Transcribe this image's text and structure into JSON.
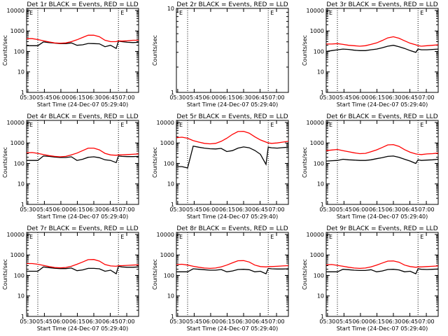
{
  "figure": {
    "xlabel": "Start Time (24-Dec-07 05:29:40)",
    "ylabel": "Counts/sec",
    "x_ticks": [
      "05:30",
      "05:45",
      "06:00",
      "06:15",
      "06:30",
      "06:45",
      "07:00"
    ],
    "y_ticks": [
      "1",
      "10",
      "100",
      "1000",
      "10000"
    ],
    "series_colors": {
      "events": "#000000",
      "lld": "#ff0000"
    },
    "flag_label": "E"
  },
  "chart_data": [
    {
      "type": "line",
      "title": "Det 1r BLACK = Events, RED = LLD",
      "xlim": [
        0,
        100
      ],
      "ylim_log10": [
        0,
        4.1
      ],
      "vlines": [
        10,
        82
      ],
      "x": [
        0,
        5,
        10,
        15,
        20,
        25,
        30,
        35,
        40,
        45,
        50,
        55,
        60,
        65,
        70,
        75,
        80,
        82,
        85,
        90,
        95,
        100
      ],
      "series": [
        {
          "name": "Events",
          "color": "#000000",
          "values": [
            190,
            190,
            190,
            290,
            270,
            255,
            240,
            240,
            260,
            200,
            210,
            245,
            240,
            235,
            170,
            200,
            140,
            320,
            300,
            280,
            270,
            280
          ]
        },
        {
          "name": "LLD",
          "color": "#ff0000",
          "values": [
            420,
            420,
            380,
            330,
            290,
            260,
            250,
            260,
            300,
            370,
            480,
            620,
            620,
            520,
            350,
            300,
            300,
            330,
            320,
            330,
            350,
            350
          ]
        }
      ]
    },
    {
      "type": "line",
      "title": "Det 2r BLACK = Events, RED = LLD",
      "xlim": [
        0,
        100
      ],
      "ylim_log10": [
        0,
        1
      ],
      "vlines": [
        10,
        82
      ],
      "x": [],
      "series": []
    },
    {
      "type": "line",
      "title": "Det 3r BLACK = Events, RED = LLD",
      "xlim": [
        0,
        100
      ],
      "ylim_log10": [
        0,
        4.1
      ],
      "vlines": [
        10,
        82
      ],
      "x": [
        0,
        5,
        10,
        15,
        20,
        25,
        30,
        35,
        40,
        45,
        50,
        55,
        60,
        65,
        70,
        75,
        80,
        82,
        85,
        90,
        95,
        100
      ],
      "series": [
        {
          "name": "Events",
          "color": "#000000",
          "values": [
            100,
            110,
            120,
            130,
            125,
            115,
            110,
            110,
            120,
            130,
            150,
            180,
            200,
            170,
            140,
            110,
            90,
            130,
            120,
            120,
            125,
            130
          ]
        },
        {
          "name": "LLD",
          "color": "#ff0000",
          "values": [
            230,
            230,
            240,
            220,
            200,
            190,
            180,
            190,
            220,
            260,
            340,
            460,
            520,
            440,
            330,
            250,
            210,
            190,
            180,
            190,
            200,
            210
          ]
        }
      ]
    },
    {
      "type": "line",
      "title": "Det 4r BLACK = Events, RED = LLD",
      "xlim": [
        0,
        100
      ],
      "ylim_log10": [
        0,
        4.1
      ],
      "vlines": [
        10,
        82
      ],
      "x": [
        0,
        5,
        10,
        15,
        20,
        25,
        30,
        35,
        40,
        45,
        50,
        55,
        60,
        65,
        70,
        75,
        80,
        82,
        85,
        90,
        95,
        100
      ],
      "series": [
        {
          "name": "Events",
          "color": "#000000",
          "values": [
            140,
            140,
            140,
            230,
            220,
            205,
            195,
            195,
            210,
            140,
            160,
            200,
            210,
            190,
            150,
            140,
            110,
            230,
            220,
            215,
            215,
            220
          ]
        },
        {
          "name": "LLD",
          "color": "#ff0000",
          "values": [
            330,
            340,
            310,
            270,
            240,
            220,
            210,
            220,
            260,
            320,
            420,
            560,
            560,
            460,
            310,
            260,
            250,
            260,
            260,
            270,
            280,
            290
          ]
        }
      ]
    },
    {
      "type": "line",
      "title": "Det 5r BLACK = Events, RED = LLD",
      "xlim": [
        0,
        100
      ],
      "ylim_log10": [
        0,
        4.1
      ],
      "vlines": [
        10,
        82
      ],
      "x": [
        0,
        5,
        10,
        15,
        20,
        25,
        30,
        35,
        40,
        45,
        50,
        55,
        60,
        65,
        70,
        75,
        80,
        82,
        85,
        90,
        95,
        100
      ],
      "series": [
        {
          "name": "Events",
          "color": "#000000",
          "values": [
            70,
            70,
            60,
            700,
            620,
            560,
            520,
            510,
            540,
            380,
            420,
            560,
            640,
            580,
            430,
            280,
            90,
            620,
            580,
            560,
            590,
            620
          ]
        },
        {
          "name": "LLD",
          "color": "#ff0000",
          "values": [
            1800,
            1900,
            1700,
            1300,
            1100,
            950,
            900,
            950,
            1200,
            1700,
            2600,
            3600,
            3700,
            3000,
            2000,
            1400,
            1100,
            1000,
            950,
            1000,
            1100,
            1200
          ]
        }
      ]
    },
    {
      "type": "line",
      "title": "Det 6r BLACK = Events, RED = LLD",
      "xlim": [
        0,
        100
      ],
      "ylim_log10": [
        0,
        4.1
      ],
      "vlines": [
        10,
        82
      ],
      "x": [
        0,
        5,
        10,
        15,
        20,
        25,
        30,
        35,
        40,
        45,
        50,
        55,
        60,
        65,
        70,
        75,
        80,
        82,
        85,
        90,
        95,
        100
      ],
      "series": [
        {
          "name": "Events",
          "color": "#000000",
          "values": [
            130,
            135,
            140,
            160,
            150,
            145,
            140,
            140,
            150,
            170,
            190,
            220,
            230,
            200,
            160,
            130,
            100,
            150,
            140,
            145,
            150,
            160
          ]
        },
        {
          "name": "LLD",
          "color": "#ff0000",
          "values": [
            420,
            450,
            480,
            420,
            370,
            330,
            300,
            310,
            370,
            460,
            600,
            800,
            830,
            680,
            470,
            350,
            290,
            280,
            270,
            290,
            300,
            320
          ]
        }
      ]
    },
    {
      "type": "line",
      "title": "Det 7r BLACK = Events, RED = LLD",
      "xlim": [
        0,
        100
      ],
      "ylim_log10": [
        0,
        4.1
      ],
      "vlines": [
        10,
        82
      ],
      "x": [
        0,
        5,
        10,
        15,
        20,
        25,
        30,
        35,
        40,
        45,
        50,
        55,
        60,
        65,
        70,
        75,
        80,
        82,
        85,
        90,
        95,
        100
      ],
      "series": [
        {
          "name": "Events",
          "color": "#000000",
          "values": [
            160,
            160,
            160,
            260,
            240,
            225,
            215,
            215,
            230,
            170,
            185,
            220,
            220,
            210,
            160,
            180,
            120,
            280,
            260,
            250,
            250,
            260
          ]
        },
        {
          "name": "LLD",
          "color": "#ff0000",
          "values": [
            380,
            380,
            350,
            310,
            270,
            245,
            235,
            245,
            280,
            350,
            450,
            590,
            600,
            500,
            340,
            290,
            280,
            300,
            300,
            310,
            320,
            330
          ]
        }
      ]
    },
    {
      "type": "line",
      "title": "Det 8r BLACK = Events, RED = LLD",
      "xlim": [
        0,
        100
      ],
      "ylim_log10": [
        0,
        4.1
      ],
      "vlines": [
        10,
        82
      ],
      "x": [
        0,
        5,
        10,
        15,
        20,
        25,
        30,
        35,
        40,
        45,
        50,
        55,
        60,
        65,
        70,
        75,
        80,
        82,
        85,
        90,
        95,
        100
      ],
      "series": [
        {
          "name": "Events",
          "color": "#000000",
          "values": [
            150,
            150,
            150,
            210,
            200,
            190,
            180,
            180,
            195,
            150,
            165,
            195,
            200,
            190,
            150,
            160,
            120,
            220,
            210,
            205,
            205,
            210
          ]
        },
        {
          "name": "LLD",
          "color": "#ff0000",
          "values": [
            340,
            350,
            320,
            280,
            250,
            230,
            220,
            230,
            260,
            320,
            410,
            520,
            530,
            450,
            320,
            270,
            260,
            270,
            270,
            280,
            290,
            300
          ]
        }
      ]
    },
    {
      "type": "line",
      "title": "Det 9r BLACK = Events, RED = LLD",
      "xlim": [
        0,
        100
      ],
      "ylim_log10": [
        0,
        4.1
      ],
      "vlines": [
        10,
        82
      ],
      "x": [
        0,
        5,
        10,
        15,
        20,
        25,
        30,
        35,
        40,
        45,
        50,
        55,
        60,
        65,
        70,
        75,
        80,
        82,
        85,
        90,
        95,
        100
      ],
      "series": [
        {
          "name": "Events",
          "color": "#000000",
          "values": [
            150,
            150,
            150,
            200,
            190,
            180,
            175,
            175,
            190,
            150,
            165,
            195,
            200,
            185,
            150,
            160,
            120,
            210,
            200,
            195,
            200,
            205
          ]
        },
        {
          "name": "LLD",
          "color": "#ff0000",
          "values": [
            330,
            340,
            310,
            280,
            250,
            230,
            220,
            230,
            260,
            320,
            400,
            500,
            510,
            440,
            320,
            270,
            250,
            260,
            260,
            270,
            280,
            290
          ]
        }
      ]
    }
  ]
}
